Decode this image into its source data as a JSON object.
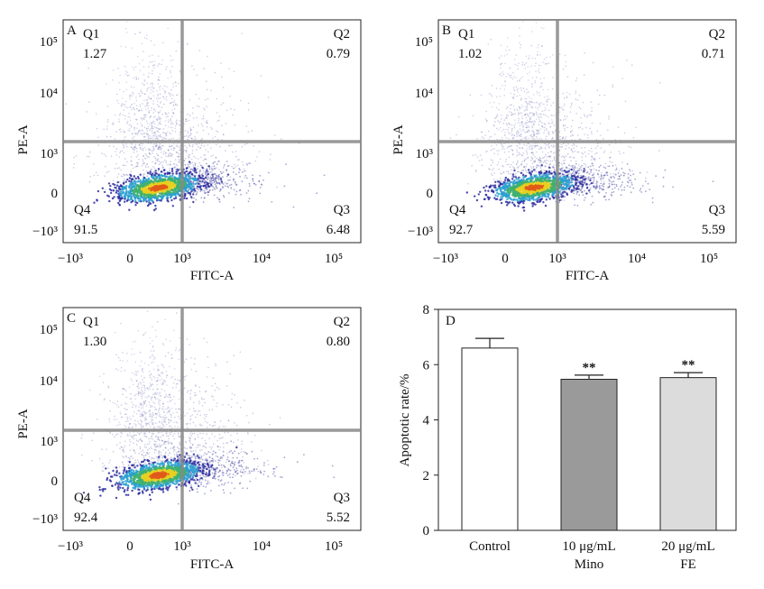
{
  "chart_data": [
    {
      "type": "scatter",
      "panel": "A",
      "xlabel": "FITC-A",
      "ylabel": "PE-A",
      "x_ticks": [
        "−10³",
        "0",
        "10³",
        "10⁴",
        "10⁵"
      ],
      "y_ticks": [
        "10⁵",
        "10⁴",
        "10³",
        "0",
        "−10³"
      ],
      "quadrants": [
        {
          "name": "Q1",
          "value": "1.27"
        },
        {
          "name": "Q2",
          "value": "0.79"
        },
        {
          "name": "Q3",
          "value": "6.48"
        },
        {
          "name": "Q4",
          "value": "91.5"
        }
      ]
    },
    {
      "type": "scatter",
      "panel": "B",
      "xlabel": "FITC-A",
      "ylabel": "PE-A",
      "x_ticks": [
        "−10³",
        "0",
        "10³",
        "10⁴",
        "10⁵"
      ],
      "y_ticks": [
        "10⁵",
        "10⁴",
        "10³",
        "0",
        "−10³"
      ],
      "quadrants": [
        {
          "name": "Q1",
          "value": "1.02"
        },
        {
          "name": "Q2",
          "value": "0.71"
        },
        {
          "name": "Q3",
          "value": "5.59"
        },
        {
          "name": "Q4",
          "value": "92.7"
        }
      ]
    },
    {
      "type": "scatter",
      "panel": "C",
      "xlabel": "FITC-A",
      "ylabel": "PE-A",
      "x_ticks": [
        "−10³",
        "0",
        "10³",
        "10⁴",
        "10⁵"
      ],
      "y_ticks": [
        "10⁵",
        "10⁴",
        "10³",
        "0",
        "−10³"
      ],
      "quadrants": [
        {
          "name": "Q1",
          "value": "1.30"
        },
        {
          "name": "Q2",
          "value": "0.80"
        },
        {
          "name": "Q3",
          "value": "5.52"
        },
        {
          "name": "Q4",
          "value": "92.4"
        }
      ]
    },
    {
      "type": "bar",
      "panel": "D",
      "ylabel": "Apoptotic rate/%",
      "ylim": [
        0,
        8
      ],
      "y_ticks": [
        0,
        2,
        4,
        6,
        8
      ],
      "categories": [
        {
          "line1": "Control",
          "line2": ""
        },
        {
          "line1": "10 μg/mL",
          "line2": "Mino"
        },
        {
          "line1": "20 μg/mL",
          "line2": "FE"
        }
      ],
      "values": [
        6.6,
        5.47,
        5.53
      ],
      "errors": [
        0.35,
        0.15,
        0.18
      ],
      "significance": [
        "",
        "**",
        "**"
      ],
      "fills": [
        "#ffffff",
        "#9a9a9a",
        "#dcdcdc"
      ]
    }
  ]
}
